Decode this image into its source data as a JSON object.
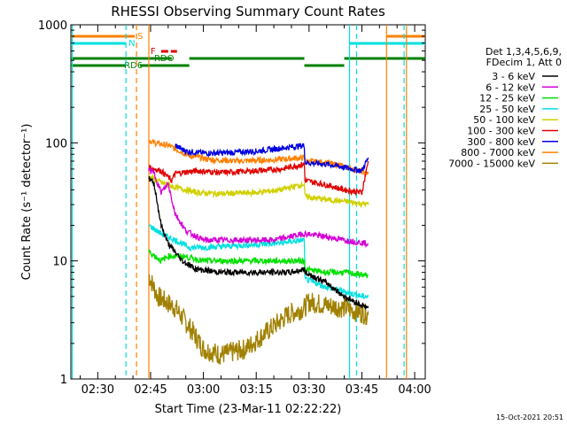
{
  "chart_data": {
    "type": "line",
    "title": "RHESSI Observing Summary Count Rates",
    "xlabel": "Start Time (23-Mar-11 02:22:22)",
    "ylabel": "Count Rate (s⁻¹ detector⁻¹)",
    "y_scale": "log",
    "ylim": [
      1,
      1000
    ],
    "xlim": [
      "02:22:22",
      "04:03:00"
    ],
    "x_tick_labels": [
      "02:30",
      "02:45",
      "03:00",
      "03:15",
      "03:30",
      "03:45",
      "04:00"
    ],
    "y_tick_labels": [
      "1",
      "10",
      "100",
      "1000"
    ],
    "footer_timestamp": "15-Oct-2021 20:51",
    "legend_header": [
      "Det 1,3,4,5,6,9,",
      "FDecim 1, Att 0"
    ],
    "legend_position": "right",
    "series": [
      {
        "name": "3 - 6 keV",
        "color": "#000000",
        "points": [
          [
            "02:44:30",
            50
          ],
          [
            "02:46:00",
            45
          ],
          [
            "02:48:00",
            20
          ],
          [
            "02:50:00",
            14
          ],
          [
            "02:54:00",
            10
          ],
          [
            "02:58:00",
            8.5
          ],
          [
            "03:05:00",
            8
          ],
          [
            "03:15:00",
            8
          ],
          [
            "03:25:00",
            8
          ],
          [
            "03:28:40",
            8.5
          ],
          [
            "03:28:50",
            8
          ],
          [
            "03:35:00",
            6.5
          ],
          [
            "03:40:00",
            5
          ],
          [
            "03:45:00",
            4.2
          ],
          [
            "03:46:50",
            4
          ]
        ]
      },
      {
        "name": "6 - 12 keV",
        "color": "#d500d5",
        "points": [
          [
            "02:44:30",
            60
          ],
          [
            "02:46:00",
            55
          ],
          [
            "02:48:00",
            38
          ],
          [
            "02:50:00",
            45
          ],
          [
            "02:52:00",
            25
          ],
          [
            "02:55:00",
            18
          ],
          [
            "03:00:00",
            15
          ],
          [
            "03:10:00",
            15
          ],
          [
            "03:20:00",
            15
          ],
          [
            "03:28:40",
            17
          ],
          [
            "03:28:50",
            17
          ],
          [
            "03:35:00",
            16
          ],
          [
            "03:40:00",
            15
          ],
          [
            "03:46:50",
            14
          ]
        ]
      },
      {
        "name": "12 - 25 keV",
        "color": "#00e000",
        "points": [
          [
            "02:44:30",
            12
          ],
          [
            "02:48:00",
            10
          ],
          [
            "02:50:00",
            11
          ],
          [
            "02:54:00",
            11
          ],
          [
            "03:00:00",
            10
          ],
          [
            "03:10:00",
            10
          ],
          [
            "03:20:00",
            10
          ],
          [
            "03:28:40",
            10
          ],
          [
            "03:28:50",
            8.5
          ],
          [
            "03:35:00",
            8
          ],
          [
            "03:40:00",
            8
          ],
          [
            "03:46:50",
            7.5
          ]
        ]
      },
      {
        "name": "25 - 50 keV",
        "color": "#00e0e0",
        "points": [
          [
            "02:44:30",
            20
          ],
          [
            "02:48:00",
            17
          ],
          [
            "02:52:00",
            15
          ],
          [
            "02:56:00",
            13
          ],
          [
            "03:00:00",
            13
          ],
          [
            "03:10:00",
            13.5
          ],
          [
            "03:20:00",
            14
          ],
          [
            "03:28:40",
            15
          ],
          [
            "03:28:50",
            7
          ],
          [
            "03:35:00",
            6
          ],
          [
            "03:40:00",
            5.5
          ],
          [
            "03:45:00",
            5
          ],
          [
            "03:46:50",
            5
          ]
        ]
      },
      {
        "name": "50 - 100 keV",
        "color": "#d0d000",
        "points": [
          [
            "02:44:30",
            52
          ],
          [
            "02:48:00",
            46
          ],
          [
            "02:52:00",
            42
          ],
          [
            "02:58:00",
            38
          ],
          [
            "03:05:00",
            37
          ],
          [
            "03:15:00",
            38
          ],
          [
            "03:22:00",
            40
          ],
          [
            "03:28:40",
            45
          ],
          [
            "03:28:50",
            35
          ],
          [
            "03:35:00",
            33
          ],
          [
            "03:40:00",
            32
          ],
          [
            "03:46:50",
            30
          ]
        ]
      },
      {
        "name": "100 - 300 keV",
        "color": "#e00000",
        "points": [
          [
            "02:44:30",
            62
          ],
          [
            "02:48:00",
            58
          ],
          [
            "02:51:00",
            48
          ],
          [
            "02:52:00",
            55
          ],
          [
            "02:58:00",
            58
          ],
          [
            "03:05:00",
            56
          ],
          [
            "03:15:00",
            58
          ],
          [
            "03:22:00",
            60
          ],
          [
            "03:28:40",
            66
          ],
          [
            "03:28:50",
            48
          ],
          [
            "03:35:00",
            44
          ],
          [
            "03:40:00",
            40
          ],
          [
            "03:45:00",
            38
          ],
          [
            "03:46:50",
            70
          ]
        ]
      },
      {
        "name": "300 - 800 keV",
        "color": "#0000e0",
        "points": [
          [
            "02:52:00",
            95
          ],
          [
            "02:55:00",
            85
          ],
          [
            "03:00:00",
            82
          ],
          [
            "03:05:00",
            82
          ],
          [
            "03:15:00",
            85
          ],
          [
            "03:22:00",
            90
          ],
          [
            "03:28:40",
            95
          ],
          [
            "03:28:50",
            68
          ],
          [
            "03:35:00",
            66
          ],
          [
            "03:40:00",
            62
          ],
          [
            "03:45:00",
            58
          ],
          [
            "03:46:50",
            75
          ]
        ]
      },
      {
        "name": "800 - 7000 keV",
        "color": "#ff8000",
        "points": [
          [
            "02:44:30",
            105
          ],
          [
            "02:46:00",
            100
          ],
          [
            "02:50:00",
            95
          ],
          [
            "02:56:00",
            78
          ],
          [
            "03:02:00",
            72
          ],
          [
            "03:10:00",
            70
          ],
          [
            "03:20:00",
            72
          ],
          [
            "03:28:40",
            75
          ],
          [
            "03:28:50",
            70
          ],
          [
            "03:35:00",
            68
          ],
          [
            "03:40:00",
            63
          ],
          [
            "03:46:50",
            55
          ]
        ]
      },
      {
        "name": "7000 - 15000 keV",
        "color": "#a08000",
        "points": [
          [
            "02:44:30",
            7.5
          ],
          [
            "02:47:00",
            5
          ],
          [
            "02:52:00",
            4
          ],
          [
            "02:57:00",
            2.5
          ],
          [
            "03:00:00",
            1.8
          ],
          [
            "03:05:00",
            1.6
          ],
          [
            "03:12:00",
            1.8
          ],
          [
            "03:18:00",
            2.5
          ],
          [
            "03:24:00",
            3.5
          ],
          [
            "03:28:40",
            4
          ],
          [
            "03:30:00",
            4.5
          ],
          [
            "03:35:00",
            4.2
          ],
          [
            "03:40:00",
            4
          ],
          [
            "03:46:50",
            3.5
          ]
        ]
      }
    ],
    "flags": [
      {
        "label": "S",
        "color": "#ff8000",
        "segments": [
          [
            "02:22:22",
            "02:40:30"
          ],
          [
            "03:52:00",
            "04:03:00"
          ]
        ]
      },
      {
        "label": "N",
        "color": "#00e0e0",
        "segments": [
          [
            "02:22:22",
            "02:38:00"
          ],
          [
            "03:41:30",
            "04:03:00"
          ]
        ]
      },
      {
        "label": "F",
        "color": "#e00000",
        "segments": [
          [
            "02:48:00",
            "02:52:30"
          ]
        ]
      },
      {
        "label": "RDO",
        "color": "#008000",
        "segments": [
          [
            "02:22:22",
            "02:44:00"
          ],
          [
            "02:44:00",
            "02:51:00"
          ],
          [
            "02:56:00",
            "03:28:40"
          ],
          [
            "03:40:00",
            "04:03:00"
          ]
        ]
      },
      {
        "label": "RD6",
        "color": "#008000",
        "segments": [
          [
            "02:22:22",
            "02:38:00"
          ],
          [
            "02:42:00",
            "02:56:00"
          ],
          [
            "03:28:40",
            "03:40:00"
          ]
        ]
      }
    ],
    "vertical_lines": [
      {
        "time": "02:22:45",
        "color": "#00e0e0",
        "style": "solid"
      },
      {
        "time": "02:38:00",
        "color": "#00e0e0",
        "style": "dashed"
      },
      {
        "time": "02:41:00",
        "color": "#ff8000",
        "style": "dashed"
      },
      {
        "time": "02:44:30",
        "color": "#ff8000",
        "style": "solid"
      },
      {
        "time": "03:41:30",
        "color": "#00e0e0",
        "style": "solid"
      },
      {
        "time": "03:43:30",
        "color": "#00e0e0",
        "style": "dashed"
      },
      {
        "time": "03:52:00",
        "color": "#ff8000",
        "style": "solid"
      },
      {
        "time": "03:57:00",
        "color": "#00e0e0",
        "style": "dashed"
      },
      {
        "time": "03:57:40",
        "color": "#ff8000",
        "style": "solid"
      }
    ]
  }
}
